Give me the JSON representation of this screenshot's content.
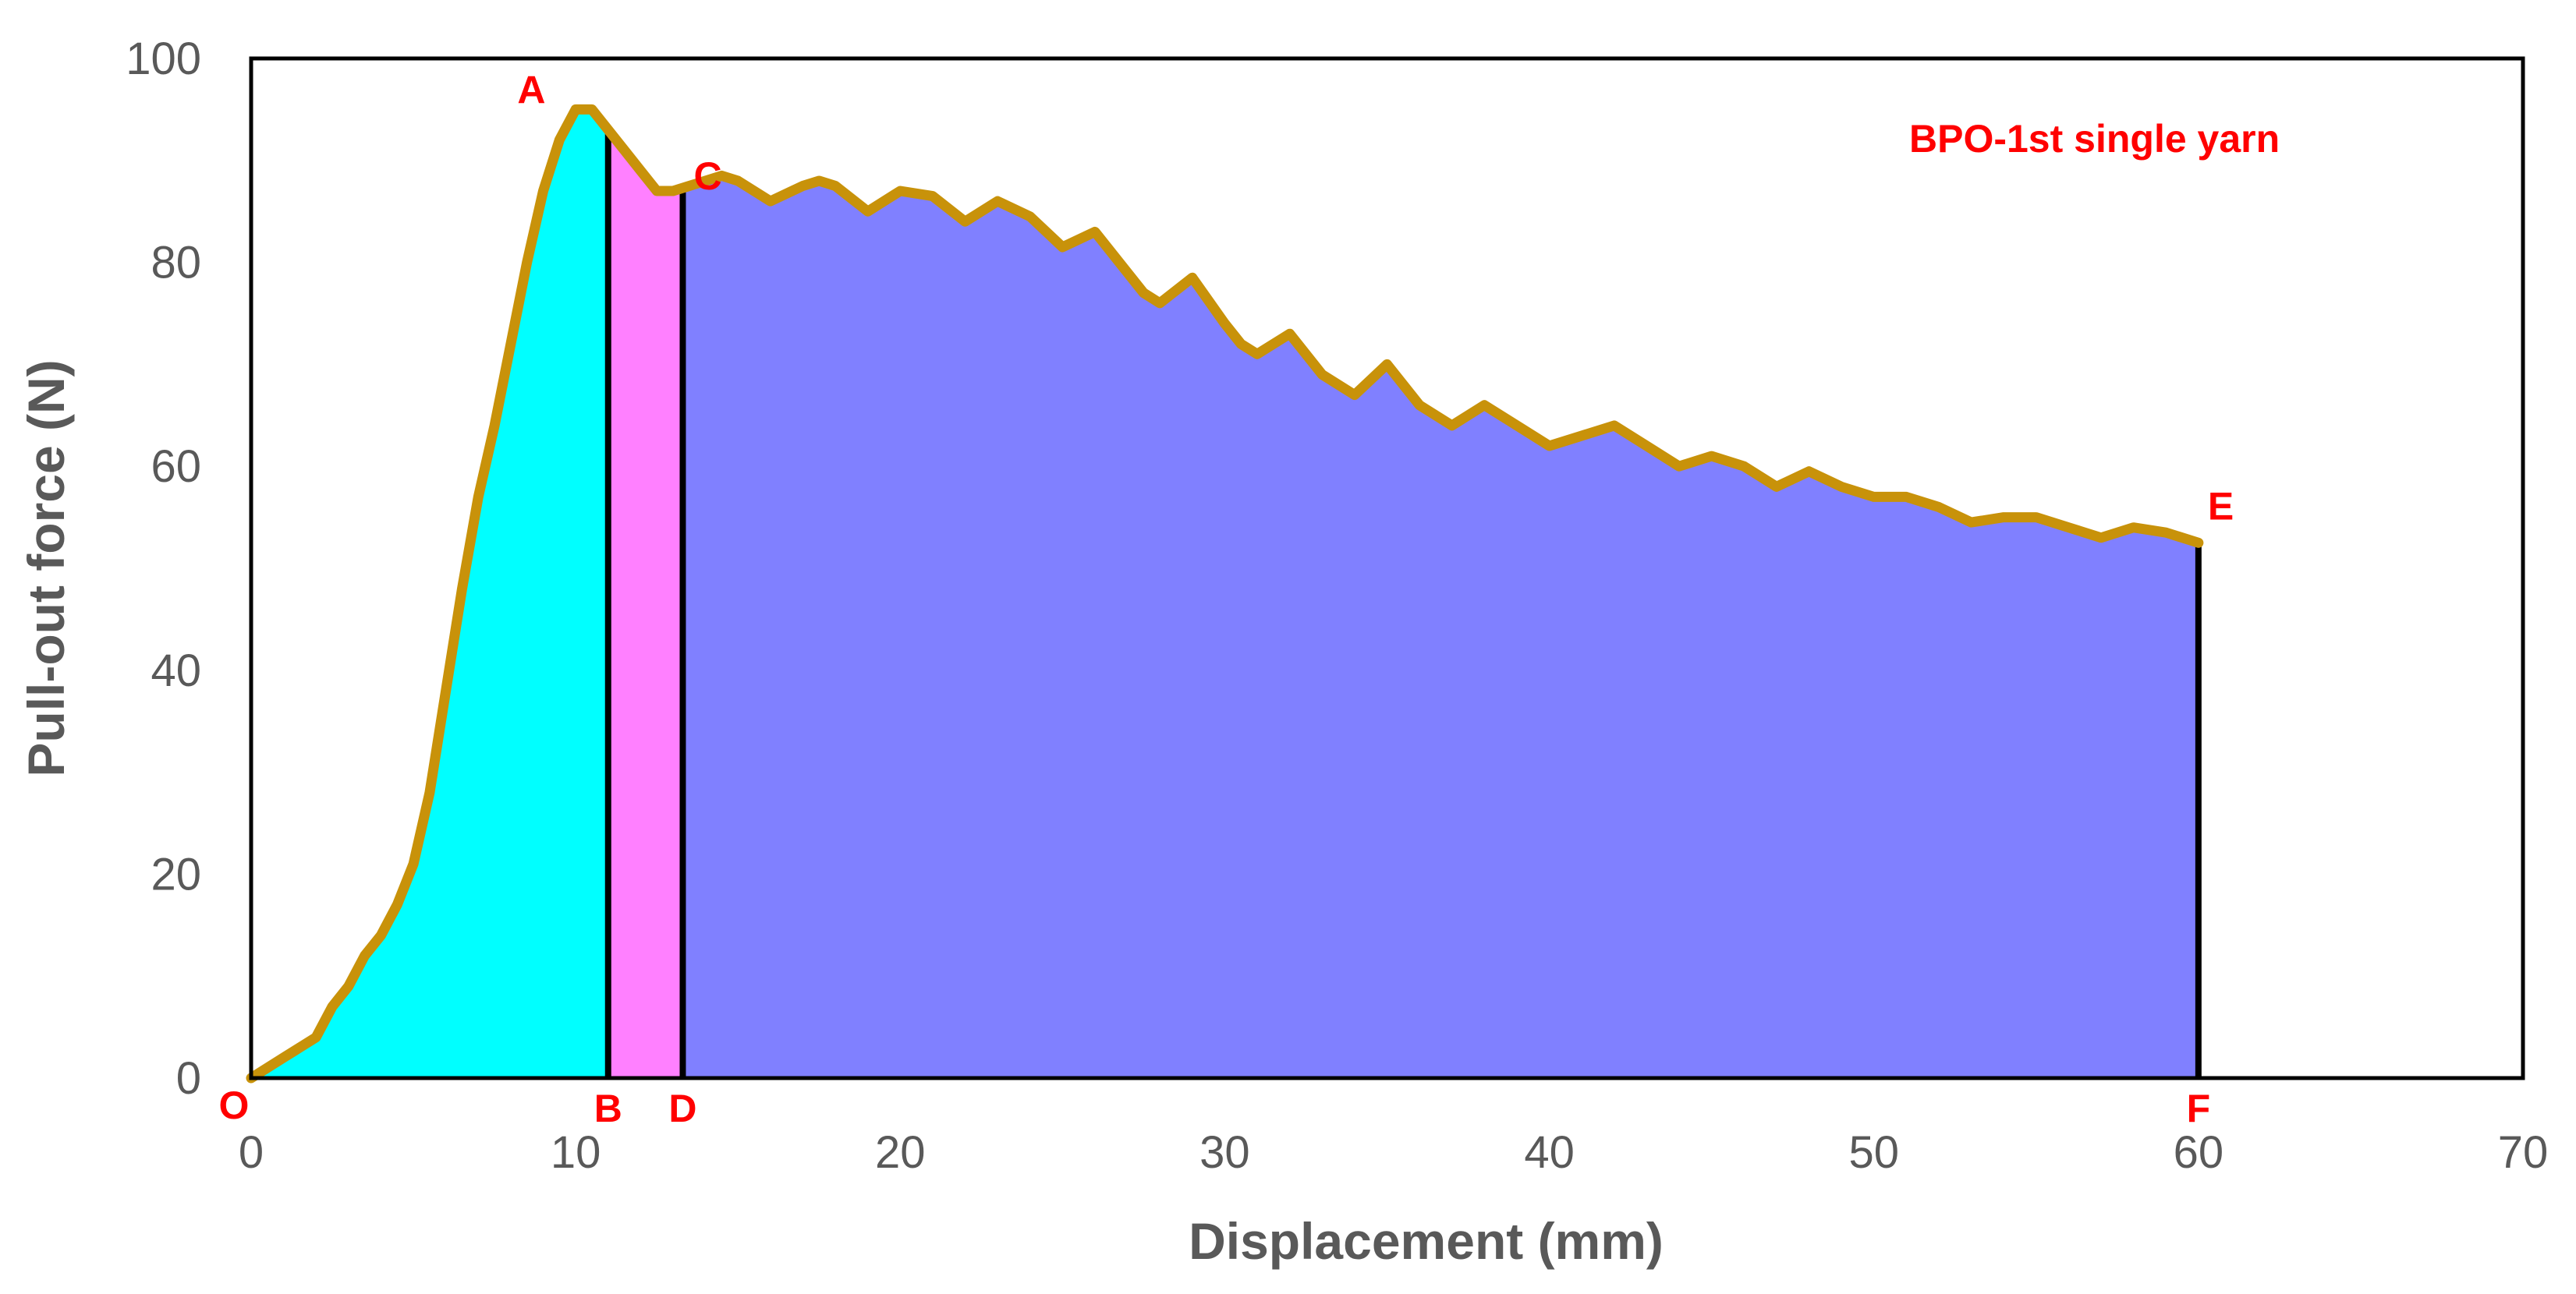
{
  "chart_data": {
    "type": "area",
    "title": "",
    "xlabel": "Displacement (mm)",
    "ylabel": "Pull-out force (N)",
    "xlim": [
      0,
      70
    ],
    "ylim": [
      0,
      100
    ],
    "xticks": [
      0,
      10,
      20,
      30,
      40,
      50,
      60,
      70
    ],
    "yticks": [
      0,
      20,
      40,
      60,
      80,
      100
    ],
    "grid": false,
    "annotation": "BPO-1st single yarn",
    "series": [
      {
        "values_x": [
          0,
          0.5,
          1,
          1.5,
          2,
          2.5,
          3,
          3.5,
          4,
          4.5,
          5,
          5.5,
          6,
          6.5,
          7,
          7.5,
          8,
          8.5,
          9,
          9.5,
          10,
          10.5,
          11,
          11.5,
          12,
          12.5,
          13,
          13.5,
          14,
          14.5,
          15,
          16,
          17,
          17.5,
          18,
          19,
          20,
          21,
          22,
          23,
          24,
          25,
          26,
          27,
          27.5,
          28,
          29,
          30,
          30.5,
          31,
          32,
          33,
          34,
          35,
          36,
          37,
          38,
          39,
          40,
          41,
          42,
          43,
          44,
          45,
          46,
          47,
          48,
          49,
          50,
          51,
          52,
          53,
          54,
          55,
          56,
          57,
          58,
          59,
          60
        ],
        "values_y": [
          0,
          1,
          2,
          3,
          4,
          7,
          9,
          12,
          14,
          17,
          21,
          28,
          38,
          48,
          57,
          64,
          72,
          80,
          87,
          92,
          95,
          95,
          93,
          91,
          89,
          87,
          87,
          87.5,
          88,
          88.5,
          88,
          86,
          87.5,
          88,
          87.5,
          85,
          87,
          86.5,
          84,
          86,
          84.5,
          81.5,
          83,
          79,
          77,
          76,
          78.5,
          74,
          72,
          71,
          73,
          69,
          67,
          70,
          66,
          64,
          66,
          64,
          62,
          63,
          64,
          62,
          60,
          61,
          60,
          58,
          59.5,
          58,
          57,
          57,
          56,
          54.5,
          55,
          55,
          54,
          53,
          54,
          53.5,
          52.5
        ],
        "color": "#c8920a"
      }
    ],
    "regions": [
      {
        "from_x": 0,
        "to_x": 11,
        "color": "#00ffff"
      },
      {
        "from_x": 11,
        "to_x": 13.3,
        "color": "#ff80ff"
      },
      {
        "from_x": 13.3,
        "to_x": 60,
        "color": "#8080ff"
      }
    ],
    "point_labels": [
      {
        "text": "O",
        "x": 0,
        "y": 0
      },
      {
        "text": "A",
        "x": 10.8,
        "y": 95
      },
      {
        "text": "B",
        "x": 11,
        "y": 0
      },
      {
        "text": "C",
        "x": 13.3,
        "y": 87
      },
      {
        "text": "D",
        "x": 13.3,
        "y": 0
      },
      {
        "text": "E",
        "x": 60,
        "y": 52.5
      },
      {
        "text": "F",
        "x": 60,
        "y": 0
      }
    ]
  }
}
